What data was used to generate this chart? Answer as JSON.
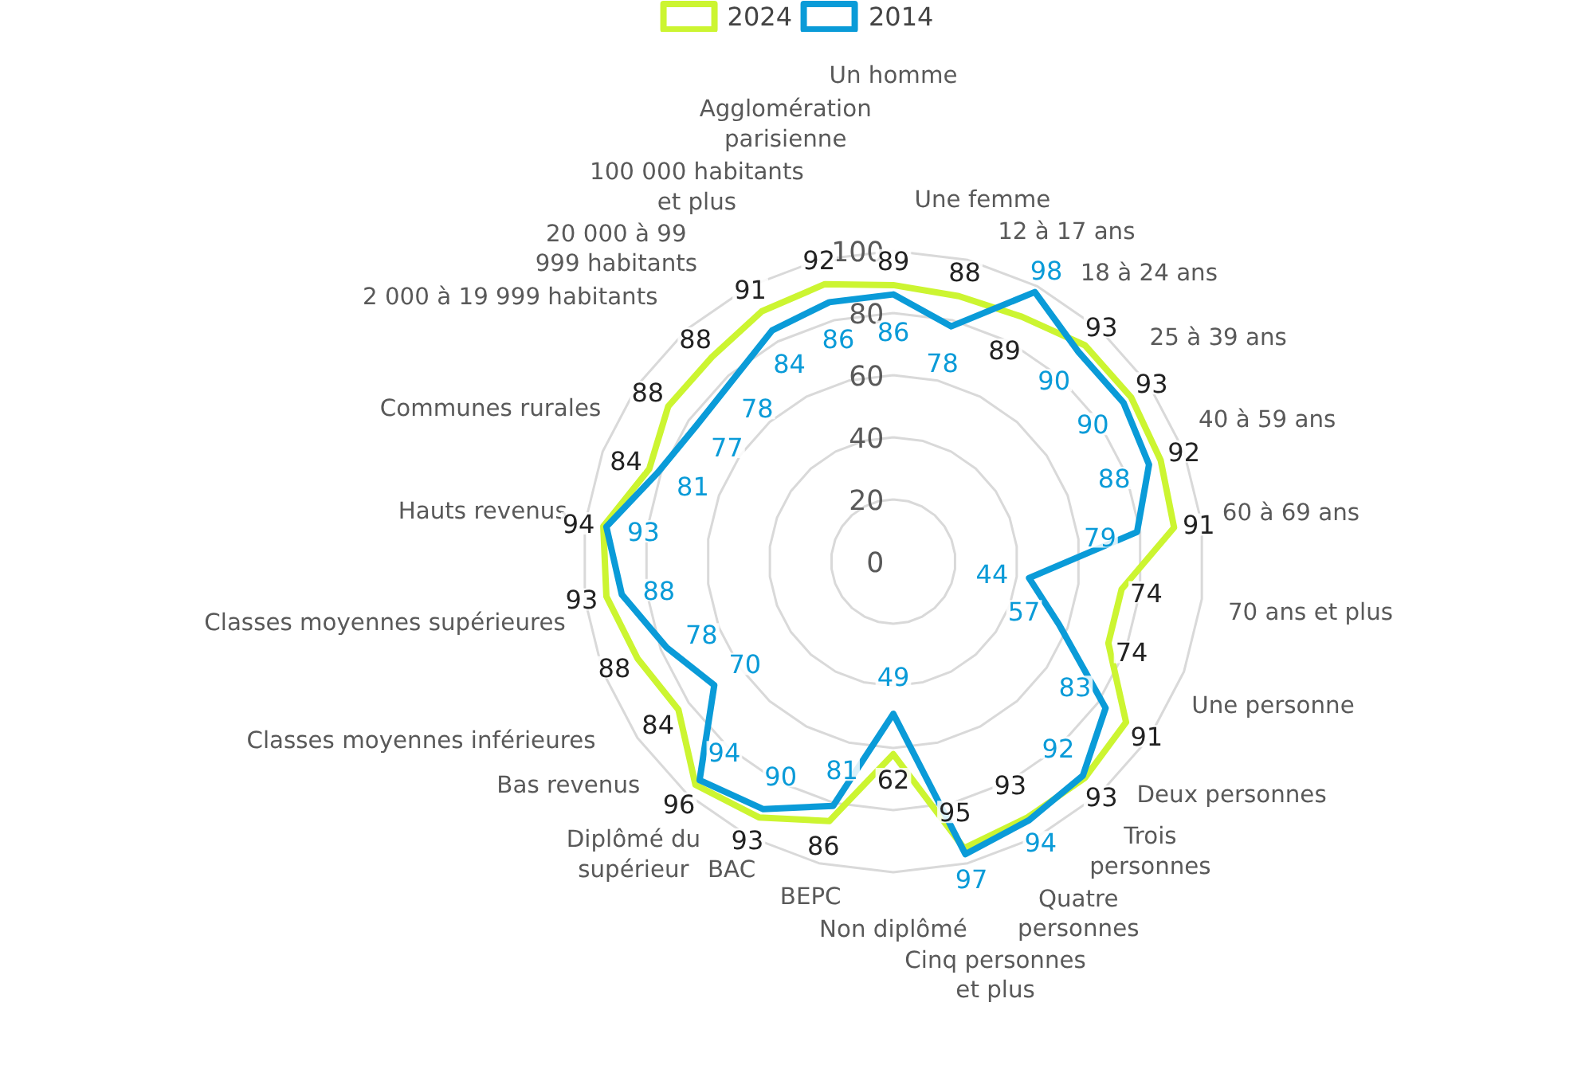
{
  "chart_data": {
    "type": "radar",
    "categories": [
      "Un homme",
      "Une femme",
      "12 à 17 ans",
      "18 à 24 ans",
      "25 à 39 ans",
      "40 à 59 ans",
      "60 à 69 ans",
      "70 ans et plus",
      "Une personne",
      "Deux personnes",
      "Trois personnes",
      "Quatre personnes",
      "Cinq personnes et plus",
      "Non diplômé",
      "BEPC",
      "BAC",
      "Diplômé du supérieur",
      "Bas revenus",
      "Classes moyennes inférieures",
      "Classes moyennes supérieures",
      "Hauts revenus",
      "Communes rurales",
      "2 000 à 19 999 habitants",
      "20 000 à 99 999 habitants",
      "100 000 habitants et plus",
      "Agglomération parisienne"
    ],
    "series": [
      {
        "name": "2024",
        "color": "#ccf531",
        "values": [
          89,
          88,
          89,
          93,
          93,
          92,
          91,
          74,
          74,
          91,
          93,
          93,
          95,
          62,
          86,
          93,
          96,
          84,
          88,
          93,
          94,
          84,
          88,
          88,
          91,
          92
        ]
      },
      {
        "name": "2014",
        "color": "#0a9bd8",
        "values": [
          86,
          78,
          98,
          90,
          90,
          88,
          79,
          44,
          57,
          83,
          92,
          94,
          97,
          49,
          81,
          90,
          94,
          70,
          78,
          88,
          93,
          81,
          77,
          78,
          84,
          86
        ]
      }
    ],
    "ylim": [
      0,
      100
    ],
    "yticks": [
      0,
      20,
      40,
      60,
      80,
      100
    ],
    "grid": true,
    "legend": "top",
    "data_labels": true
  }
}
